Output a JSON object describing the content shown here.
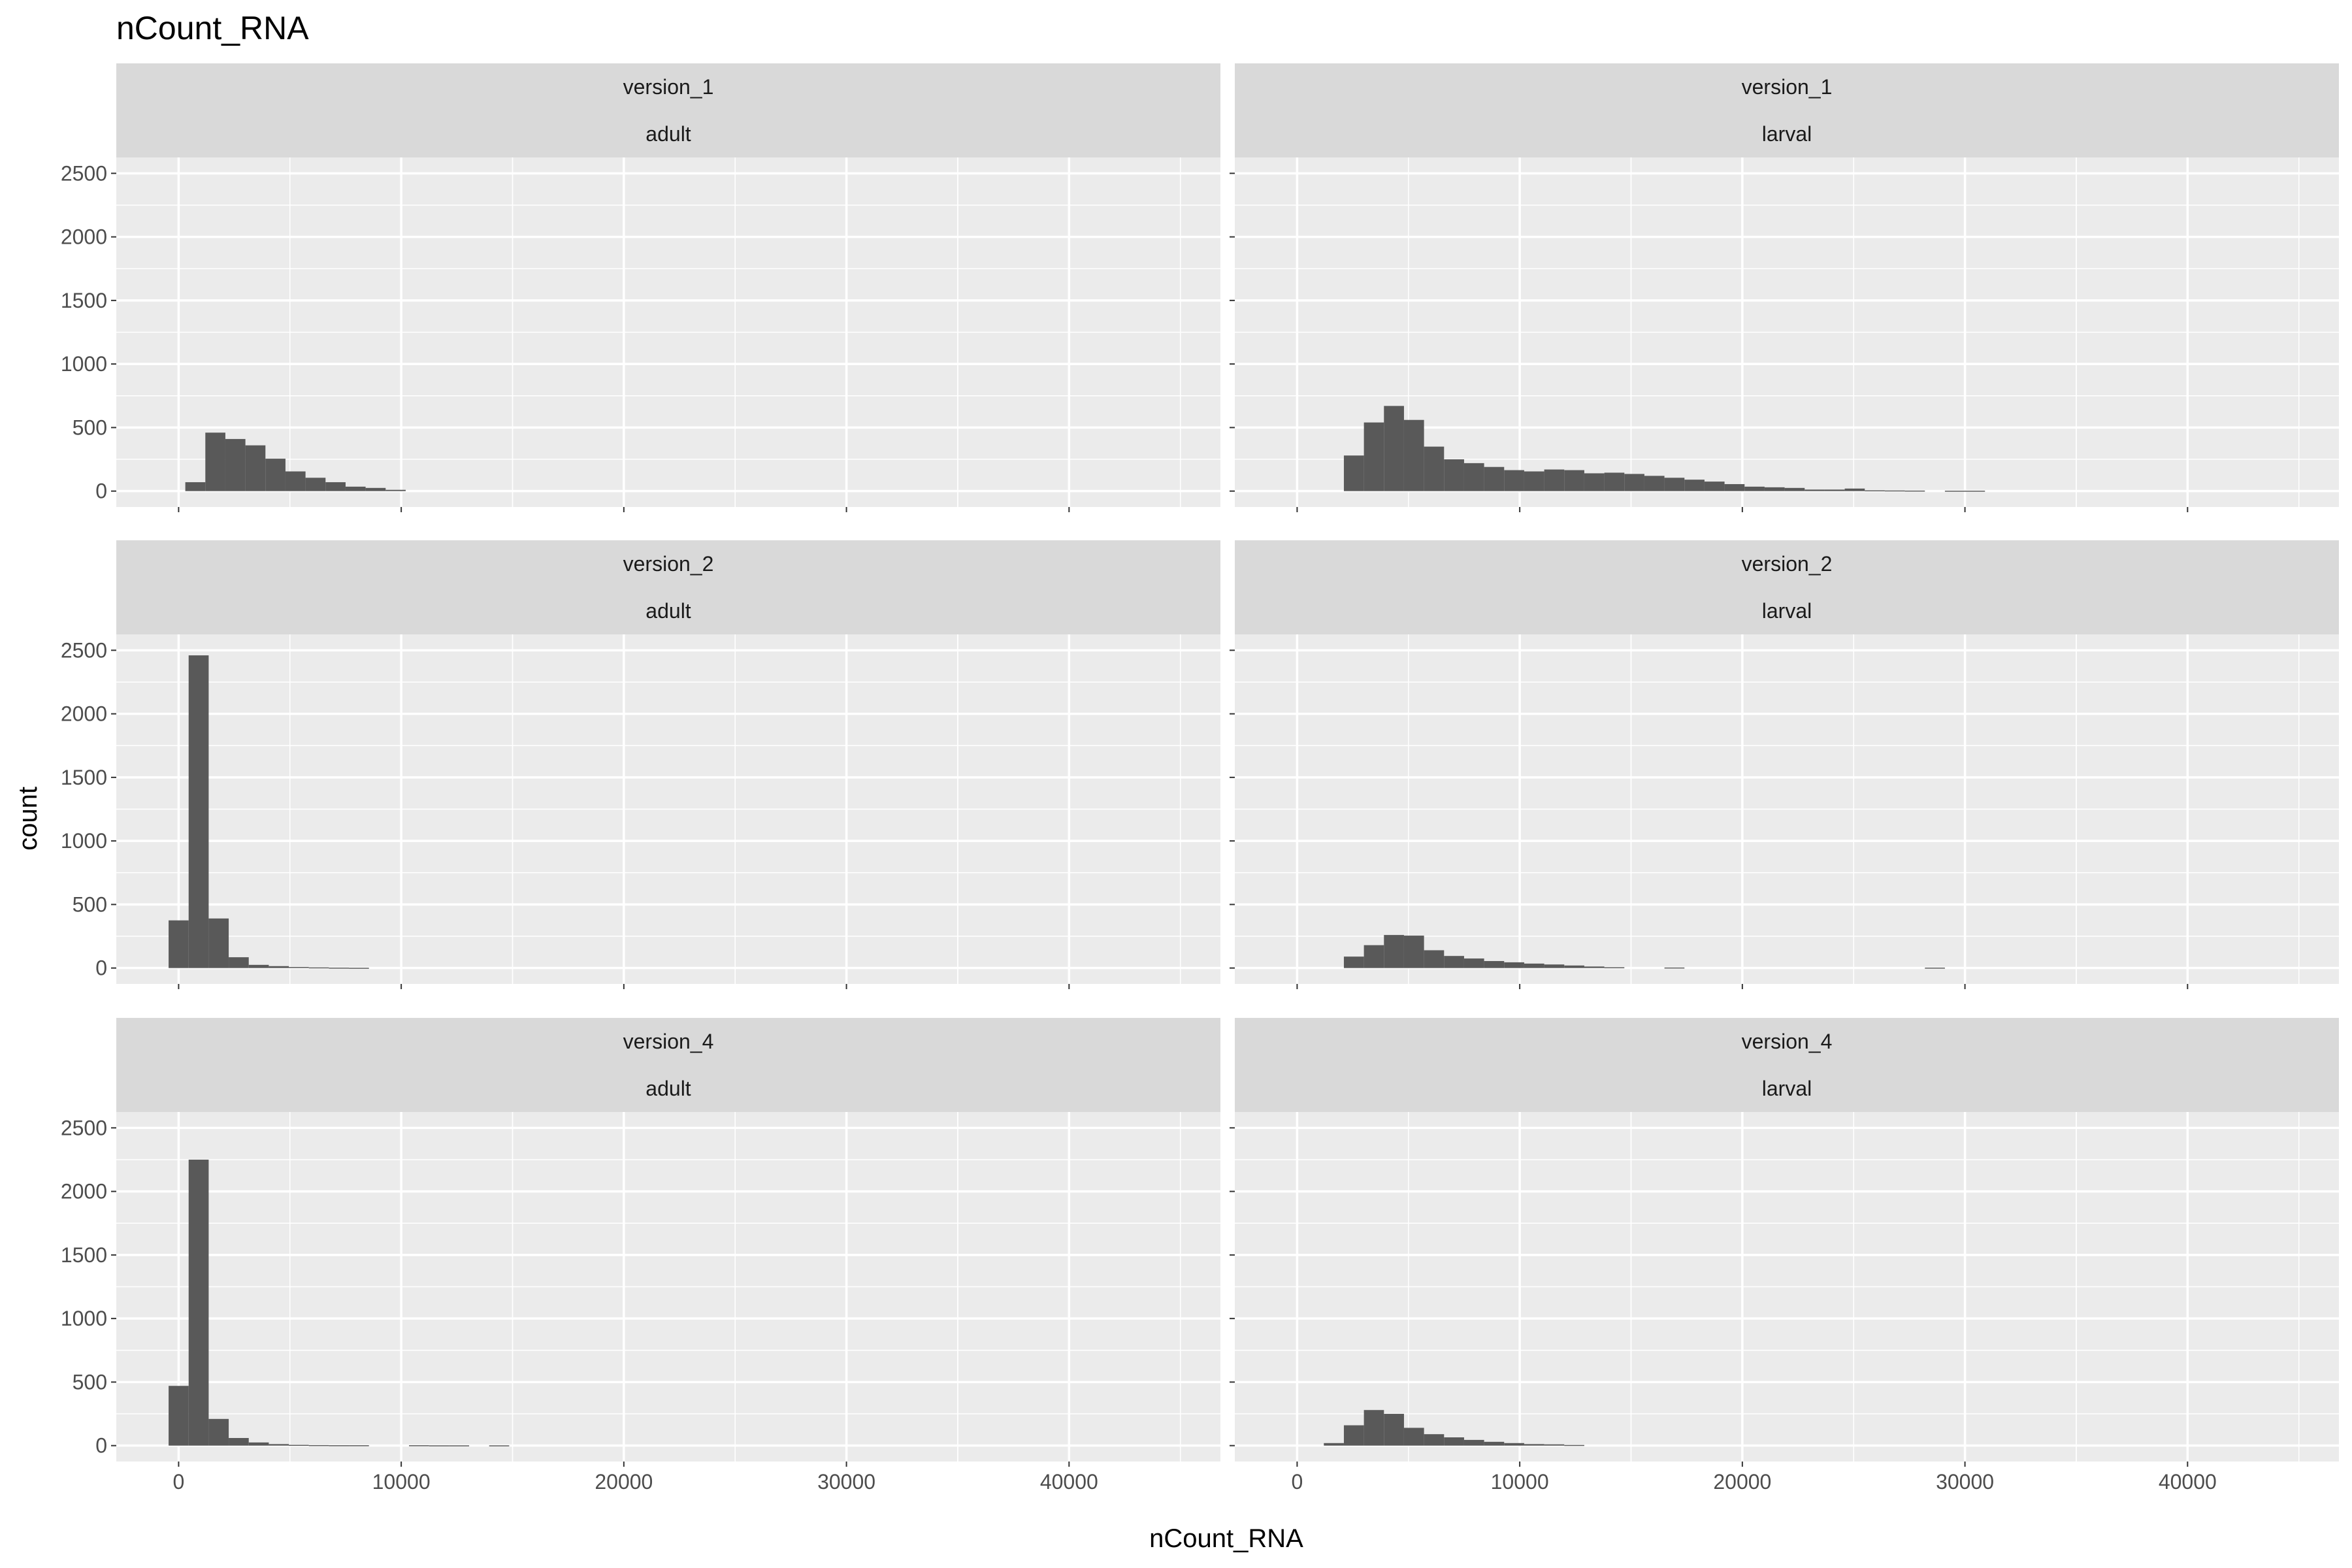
{
  "chart_data": {
    "type": "bar",
    "title": "nCount_RNA",
    "xlabel": "nCount_RNA",
    "ylabel": "count",
    "xlim": [
      -2800,
      46800
    ],
    "ylim": [
      -125,
      2625
    ],
    "x_ticks": [
      0,
      10000,
      20000,
      30000,
      40000
    ],
    "y_ticks": [
      0,
      500,
      1000,
      1500,
      2000,
      2500
    ],
    "bin_width": 900,
    "grid": true,
    "colors": {
      "bar": "#595959",
      "panel": "#ebebeb",
      "grid": "#ffffff",
      "strip": "#d9d9d9",
      "tick": "#333333"
    },
    "facets": [
      {
        "row": "version_1",
        "col": "adult",
        "bars": [
          {
            "x": 750,
            "count": 70
          },
          {
            "x": 1650,
            "count": 460
          },
          {
            "x": 2550,
            "count": 410
          },
          {
            "x": 3450,
            "count": 360
          },
          {
            "x": 4350,
            "count": 255
          },
          {
            "x": 5250,
            "count": 155
          },
          {
            "x": 6150,
            "count": 105
          },
          {
            "x": 7050,
            "count": 70
          },
          {
            "x": 7950,
            "count": 35
          },
          {
            "x": 8850,
            "count": 25
          },
          {
            "x": 9750,
            "count": 10
          }
        ]
      },
      {
        "row": "version_1",
        "col": "larval",
        "bars": [
          {
            "x": 2550,
            "count": 280
          },
          {
            "x": 3450,
            "count": 540
          },
          {
            "x": 4350,
            "count": 670
          },
          {
            "x": 5250,
            "count": 560
          },
          {
            "x": 6150,
            "count": 350
          },
          {
            "x": 7050,
            "count": 250
          },
          {
            "x": 7950,
            "count": 220
          },
          {
            "x": 8850,
            "count": 190
          },
          {
            "x": 9750,
            "count": 165
          },
          {
            "x": 10650,
            "count": 155
          },
          {
            "x": 11550,
            "count": 170
          },
          {
            "x": 12450,
            "count": 165
          },
          {
            "x": 13350,
            "count": 140
          },
          {
            "x": 14250,
            "count": 145
          },
          {
            "x": 15150,
            "count": 135
          },
          {
            "x": 16050,
            "count": 120
          },
          {
            "x": 16950,
            "count": 105
          },
          {
            "x": 17850,
            "count": 90
          },
          {
            "x": 18750,
            "count": 75
          },
          {
            "x": 19650,
            "count": 55
          },
          {
            "x": 20550,
            "count": 35
          },
          {
            "x": 21450,
            "count": 30
          },
          {
            "x": 22350,
            "count": 25
          },
          {
            "x": 23250,
            "count": 12
          },
          {
            "x": 24150,
            "count": 12
          },
          {
            "x": 25050,
            "count": 20
          },
          {
            "x": 25950,
            "count": 6
          },
          {
            "x": 26850,
            "count": 5
          },
          {
            "x": 27750,
            "count": 4
          },
          {
            "x": 29550,
            "count": 3
          },
          {
            "x": 30450,
            "count": 3
          }
        ]
      },
      {
        "row": "version_2",
        "col": "adult",
        "bars": [
          {
            "x": 0,
            "count": 375
          },
          {
            "x": 900,
            "count": 2460
          },
          {
            "x": 1800,
            "count": 390
          },
          {
            "x": 2700,
            "count": 85
          },
          {
            "x": 3600,
            "count": 25
          },
          {
            "x": 4500,
            "count": 15
          },
          {
            "x": 5400,
            "count": 8
          },
          {
            "x": 6300,
            "count": 5
          },
          {
            "x": 7200,
            "count": 3
          },
          {
            "x": 8100,
            "count": 2
          }
        ]
      },
      {
        "row": "version_2",
        "col": "larval",
        "bars": [
          {
            "x": 2550,
            "count": 90
          },
          {
            "x": 3450,
            "count": 180
          },
          {
            "x": 4350,
            "count": 260
          },
          {
            "x": 5250,
            "count": 255
          },
          {
            "x": 6150,
            "count": 140
          },
          {
            "x": 7050,
            "count": 95
          },
          {
            "x": 7950,
            "count": 75
          },
          {
            "x": 8850,
            "count": 55
          },
          {
            "x": 9750,
            "count": 45
          },
          {
            "x": 10650,
            "count": 35
          },
          {
            "x": 11550,
            "count": 28
          },
          {
            "x": 12450,
            "count": 20
          },
          {
            "x": 13350,
            "count": 12
          },
          {
            "x": 14250,
            "count": 6
          },
          {
            "x": 16950,
            "count": 4
          },
          {
            "x": 28650,
            "count": 3
          }
        ]
      },
      {
        "row": "version_4",
        "col": "adult",
        "bars": [
          {
            "x": 0,
            "count": 470
          },
          {
            "x": 900,
            "count": 2250
          },
          {
            "x": 1800,
            "count": 210
          },
          {
            "x": 2700,
            "count": 60
          },
          {
            "x": 3600,
            "count": 25
          },
          {
            "x": 4500,
            "count": 12
          },
          {
            "x": 5400,
            "count": 6
          },
          {
            "x": 6300,
            "count": 4
          },
          {
            "x": 7200,
            "count": 3
          },
          {
            "x": 8100,
            "count": 3
          },
          {
            "x": 10800,
            "count": 3
          },
          {
            "x": 11700,
            "count": 2
          },
          {
            "x": 12600,
            "count": 2
          },
          {
            "x": 14400,
            "count": 2
          }
        ]
      },
      {
        "row": "version_4",
        "col": "larval",
        "bars": [
          {
            "x": 1650,
            "count": 20
          },
          {
            "x": 2550,
            "count": 160
          },
          {
            "x": 3450,
            "count": 280
          },
          {
            "x": 4350,
            "count": 250
          },
          {
            "x": 5250,
            "count": 140
          },
          {
            "x": 6150,
            "count": 90
          },
          {
            "x": 7050,
            "count": 65
          },
          {
            "x": 7950,
            "count": 45
          },
          {
            "x": 8850,
            "count": 30
          },
          {
            "x": 9750,
            "count": 20
          },
          {
            "x": 10650,
            "count": 12
          },
          {
            "x": 11550,
            "count": 10
          },
          {
            "x": 12450,
            "count": 5
          }
        ]
      }
    ]
  }
}
